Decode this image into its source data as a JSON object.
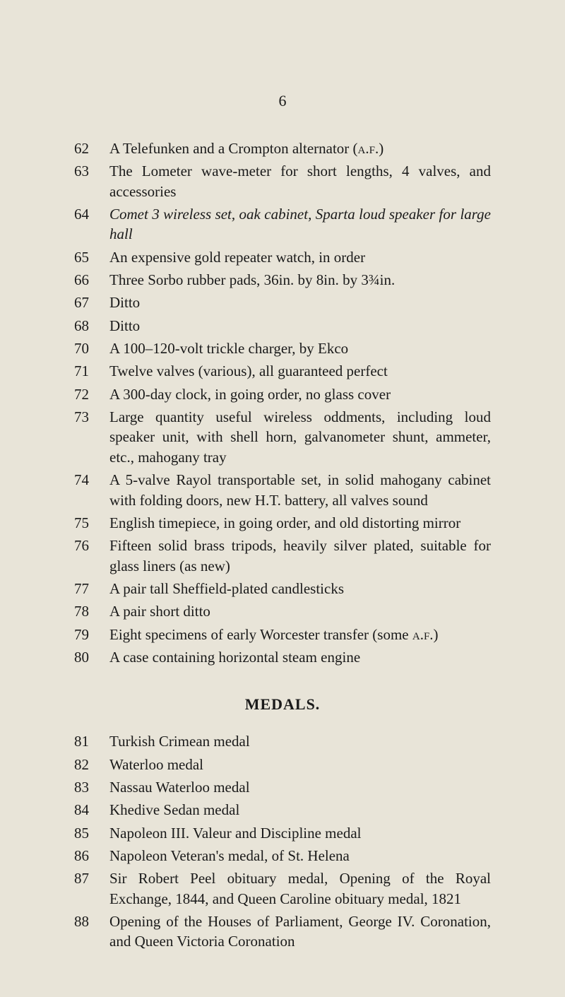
{
  "page_number": "6",
  "background_color": "#e8e4d8",
  "text_color": "#1a1a1a",
  "font_family": "Times New Roman",
  "body_fontsize": 21,
  "lot_column_width": 50,
  "entries_section1": [
    {
      "num": "62",
      "desc": "A Telefunken and a Crompton alternator (<span class='sc'>a.f.</span>)"
    },
    {
      "num": "63",
      "desc": "The Lometer wave-meter for short lengths, 4 valves, and accessories"
    },
    {
      "num": "64",
      "desc": "<span class='italic'>Comet 3 wireless set, oak cabinet, Sparta loud speaker for large hall</span>"
    },
    {
      "num": "65",
      "desc": "An expensive gold repeater watch, in order"
    },
    {
      "num": "66",
      "desc": "Three Sorbo rubber pads, 36in. by 8in. by 3¾in."
    },
    {
      "num": "67",
      "desc": "Ditto"
    },
    {
      "num": "68",
      "desc": "Ditto"
    },
    {
      "num": "70",
      "desc": "A 100–120-volt trickle charger, by Ekco"
    },
    {
      "num": "71",
      "desc": "Twelve valves (various), all guaranteed perfect"
    },
    {
      "num": "72",
      "desc": "A 300-day clock, in going order, no glass cover"
    },
    {
      "num": "73",
      "desc": "Large quantity useful wireless oddments, including loud speaker unit, with shell horn, galvanometer shunt, ammeter, etc., mahogany tray"
    },
    {
      "num": "74",
      "desc": "A 5-valve Rayol transportable set, in solid mahogany cabinet with folding doors, new H.T. battery, all valves sound"
    },
    {
      "num": "75",
      "desc": "English timepiece, in going order, and old distorting mirror"
    },
    {
      "num": "76",
      "desc": "Fifteen solid brass tripods, heavily silver plated, suitable for glass liners (as new)"
    },
    {
      "num": "77",
      "desc": "A pair tall Sheffield-plated candlesticks"
    },
    {
      "num": "78",
      "desc": "A pair short ditto"
    },
    {
      "num": "79",
      "desc": "Eight specimens of early Worcester transfer (some <span class='sc'>a.f.</span>)"
    },
    {
      "num": "80",
      "desc": "A case containing horizontal steam engine"
    }
  ],
  "section_heading": "MEDALS.",
  "entries_section2": [
    {
      "num": "81",
      "desc": "Turkish Crimean medal"
    },
    {
      "num": "82",
      "desc": "Waterloo medal"
    },
    {
      "num": "83",
      "desc": "Nassau Waterloo medal"
    },
    {
      "num": "84",
      "desc": "Khedive Sedan medal"
    },
    {
      "num": "85",
      "desc": "Napoleon III. Valeur and Discipline medal"
    },
    {
      "num": "86",
      "desc": "Napoleon Veteran's medal, of St. Helena"
    },
    {
      "num": "87",
      "desc": "Sir Robert Peel obituary medal, Opening of the Royal Exchange, 1844, and Queen Caroline obituary medal, 1821"
    },
    {
      "num": "88",
      "desc": "Opening of the Houses of Parliament, George IV. Coronation, and Queen Victoria Coronation"
    }
  ]
}
